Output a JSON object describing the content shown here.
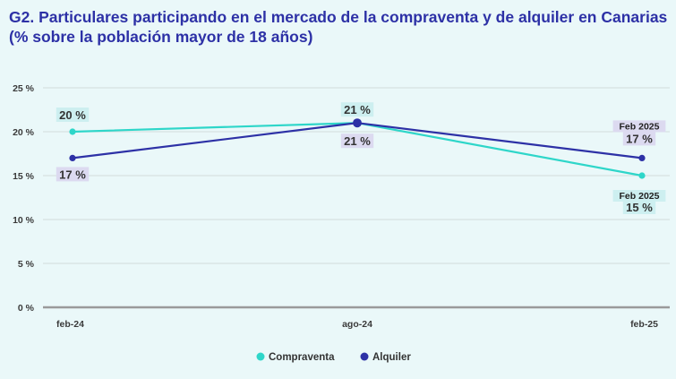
{
  "title_line1": "G2. Particulares participando en el mercado de la compraventa y de alquiler en Canarias",
  "title_line2": "(% sobre la población mayor de 18 años)",
  "chart_data": {
    "type": "line",
    "categories": [
      "feb-24",
      "ago-24",
      "feb-25"
    ],
    "ylim": [
      0,
      25
    ],
    "yticks": [
      0,
      5,
      10,
      15,
      20,
      25
    ],
    "ytick_labels": [
      "0 %",
      "5 %",
      "10 %",
      "15 %",
      "20 %",
      "25 %"
    ],
    "grid": true,
    "legend": "bottom-center",
    "series": [
      {
        "name": "Compraventa",
        "color": "#2ed6c9",
        "values": [
          20,
          21,
          15
        ],
        "labels": [
          "20 %",
          "21 %",
          "15 %"
        ],
        "last_label_prefix": "Feb 2025"
      },
      {
        "name": "Alquiler",
        "color": "#2d31a6",
        "values": [
          17,
          21,
          17
        ],
        "labels": [
          "17 %",
          "21 %",
          "17 %"
        ],
        "last_label_prefix": "Feb 2025"
      }
    ]
  }
}
